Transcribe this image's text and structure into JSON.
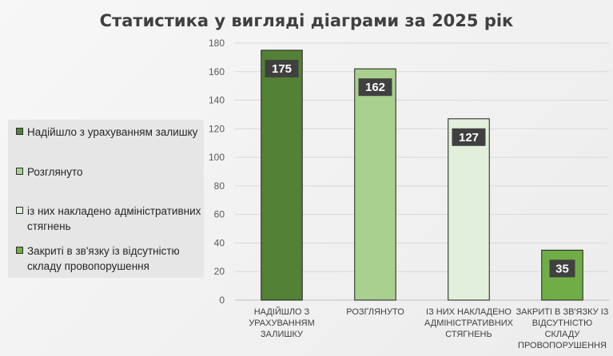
{
  "chart_data": {
    "type": "bar",
    "title": "Статистика у вигляді діаграми за 2025 рік",
    "categories": [
      "НАДІЙШЛО З УРАХУВАННЯМ ЗАЛИШКУ",
      "РОЗГЛЯНУТО",
      "ІЗ НИХ НАКЛАДЕНО АДМІНІСТРАТИВНИХ СТЯГНЕНЬ",
      "ЗАКРИТІ В ЗВ'ЯЗКУ ІЗ ВІДСУТНІСТЮ СКЛАДУ ПРОВОПОРУШЕННЯ"
    ],
    "category_lines": [
      [
        "НАДІЙШЛО З",
        "УРАХУВАННЯМ",
        "ЗАЛИШКУ"
      ],
      [
        "РОЗГЛЯНУТО"
      ],
      [
        "ІЗ НИХ НАКЛАДЕНО",
        "АДМІНІСТРАТИВНИХ",
        "СТЯГНЕНЬ"
      ],
      [
        "ЗАКРИТІ В ЗВ'ЯЗКУ ІЗ",
        "ВІДСУТНІСТЮ",
        "СКЛАДУ",
        "ПРОВОПОРУШЕННЯ"
      ]
    ],
    "values": [
      175,
      162,
      127,
      35
    ],
    "data_labels": [
      "175",
      "162",
      "127",
      "35"
    ],
    "bar_colors": [
      "#538135",
      "#a9d08e",
      "#e2efda",
      "#70ad47"
    ],
    "ylim": [
      0,
      180
    ],
    "yticks": [
      0,
      20,
      40,
      60,
      80,
      100,
      120,
      140,
      160,
      180
    ],
    "grid": true,
    "legend_position": "left",
    "legend": [
      {
        "label": "Надійшло з урахуванням залишку",
        "color": "#538135"
      },
      {
        "label": "Розглянуто",
        "color": "#a9d08e"
      },
      {
        "label": "із них накладено адміністративних стягнень",
        "color": "#e2efda"
      },
      {
        "label": "Закриті в зв'язку із відсутністю складу провопорушення",
        "color": "#70ad47"
      }
    ]
  }
}
